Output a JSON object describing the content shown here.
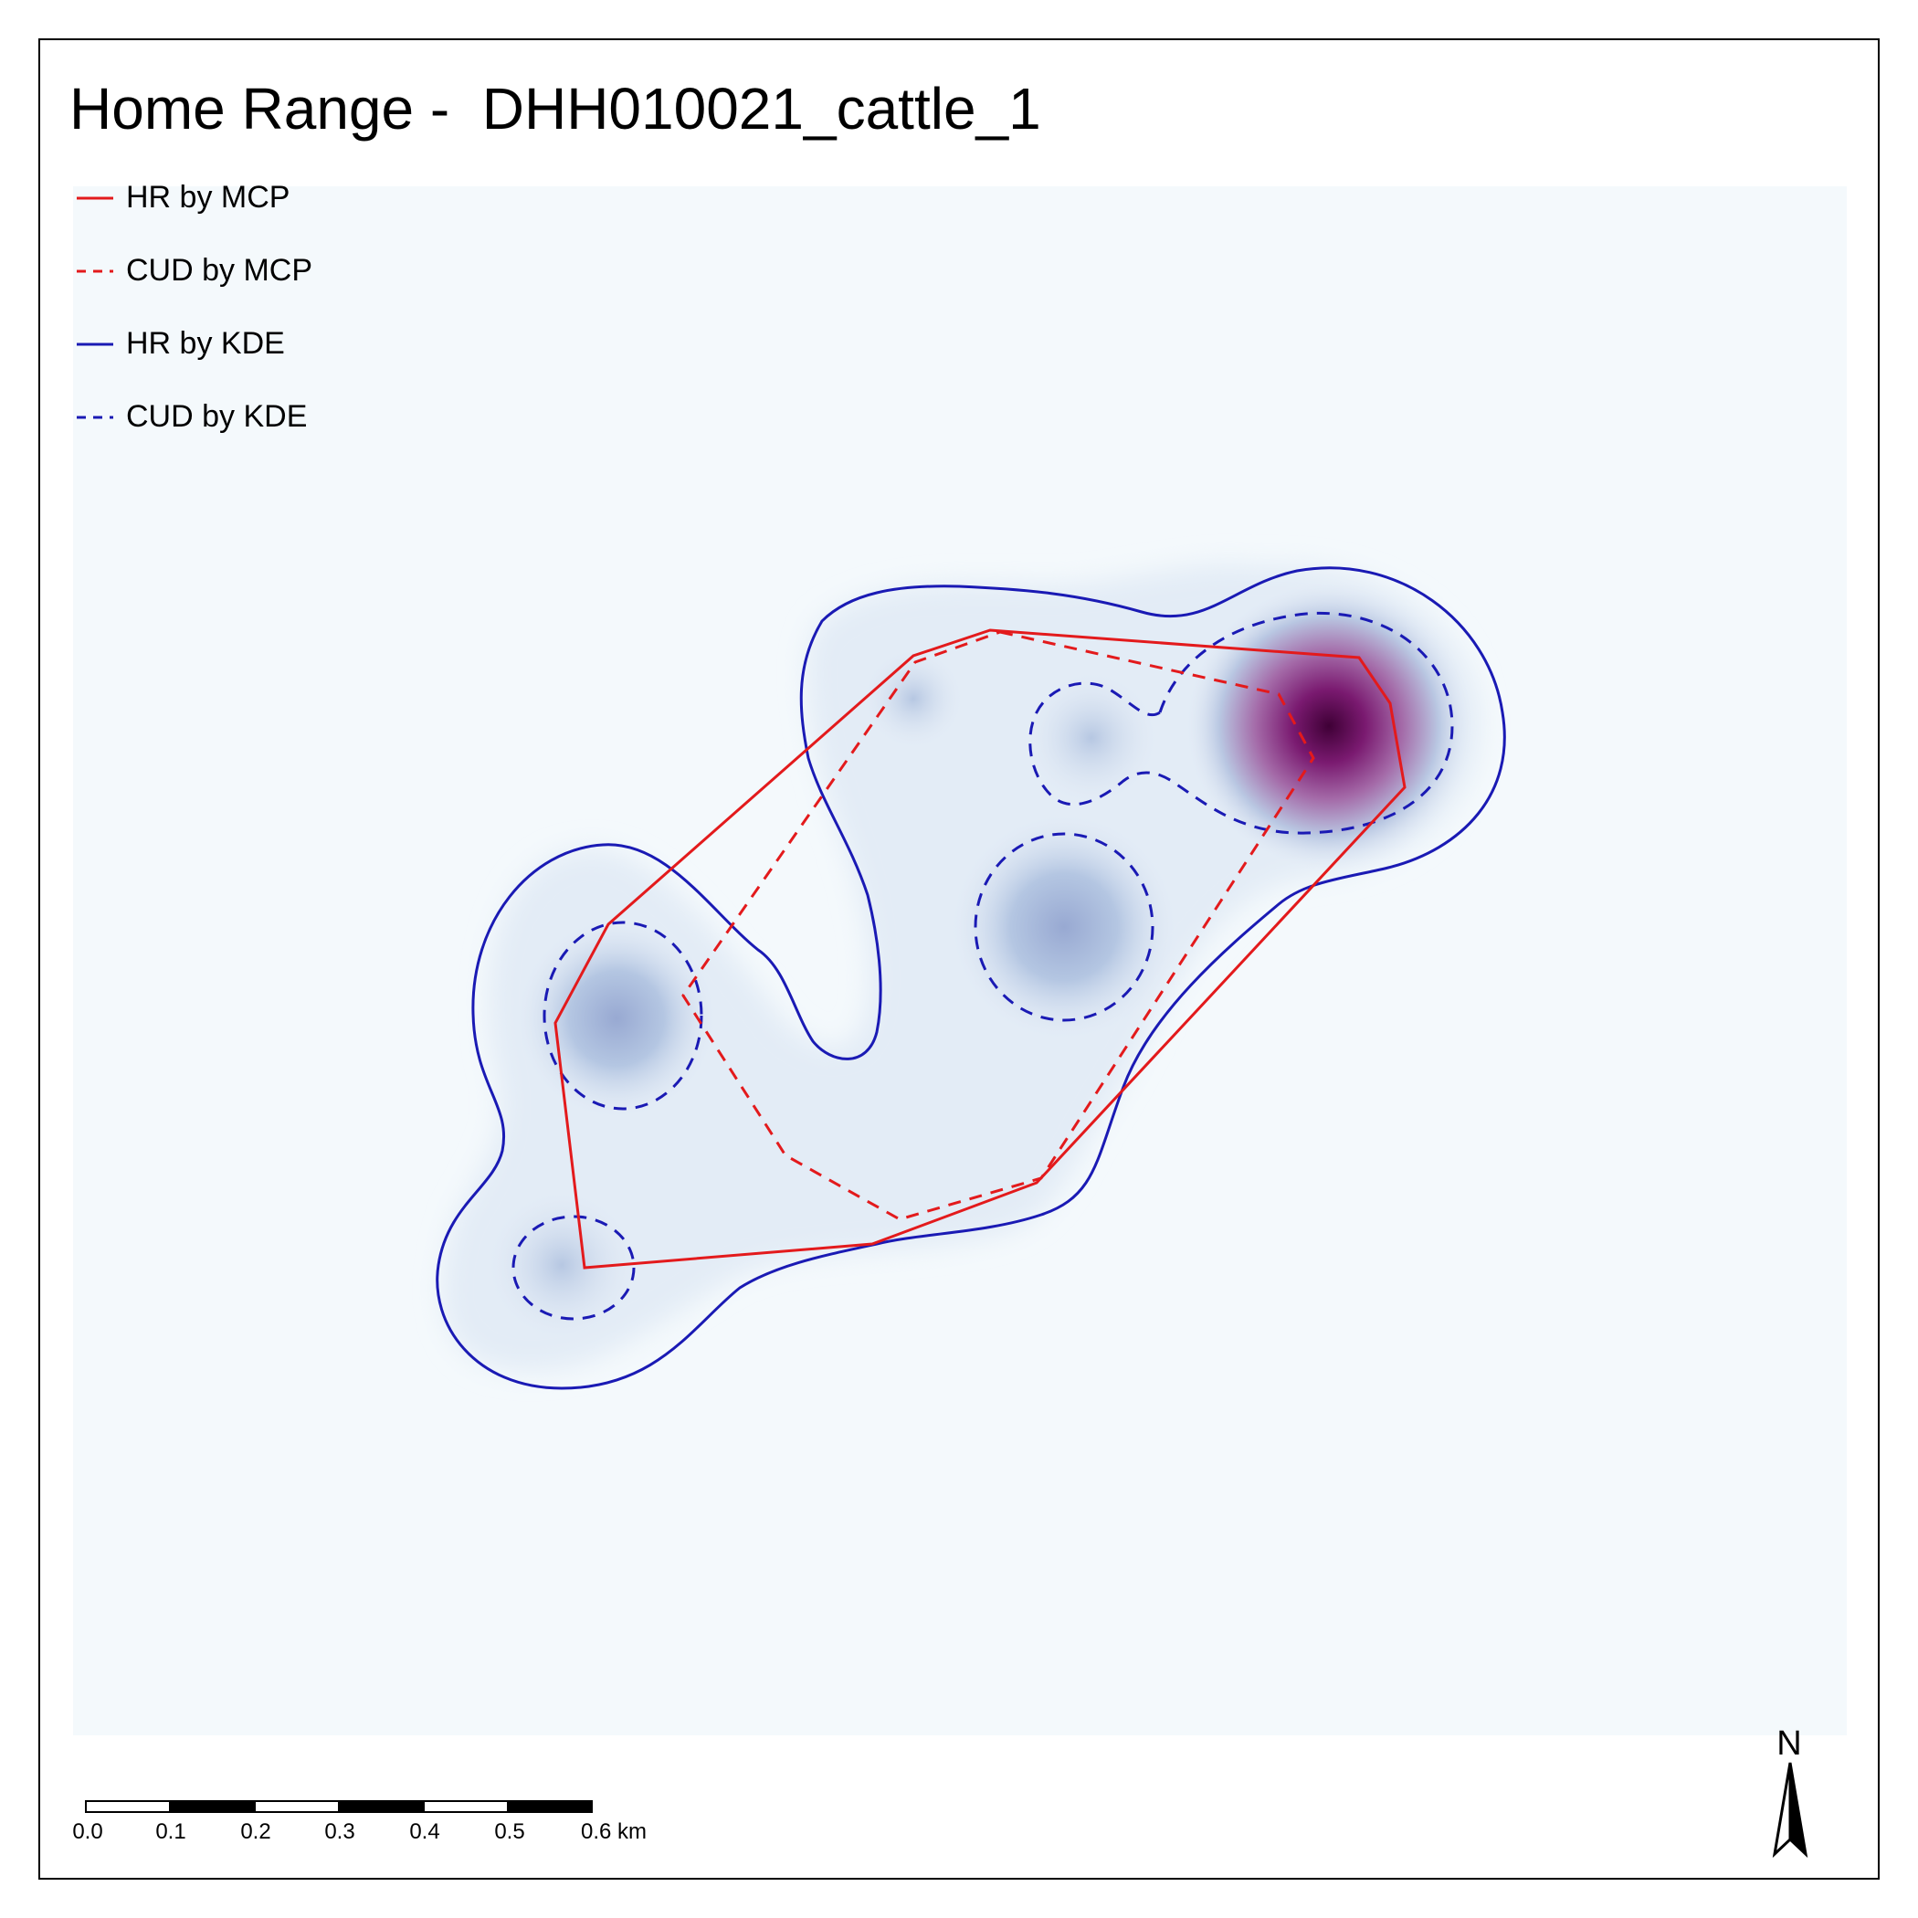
{
  "map": {
    "title": "Home Range -  DHH010021_cattle_1",
    "legend": [
      {
        "label": "HR by MCP",
        "color": "#e31a1c",
        "dash": "solid"
      },
      {
        "label": "CUD by MCP",
        "color": "#e31a1c",
        "dash": "dashed"
      },
      {
        "label": "HR by KDE",
        "color": "#1a1ab4",
        "dash": "solid"
      },
      {
        "label": "CUD by KDE",
        "color": "#1a1ab4",
        "dash": "dashed"
      }
    ],
    "scale_bar": {
      "ticks": [
        "0.0",
        "0.1",
        "0.2",
        "0.3",
        "0.4",
        "0.5",
        "0.6 km"
      ]
    },
    "north_arrow": {
      "label": "N"
    },
    "colors": {
      "background": "#f4f9fc",
      "density_low": "#dde8f4",
      "density_mid": "#9fb4d8",
      "density_high": "#8a3d8f",
      "density_peak": "#4d0040"
    }
  }
}
